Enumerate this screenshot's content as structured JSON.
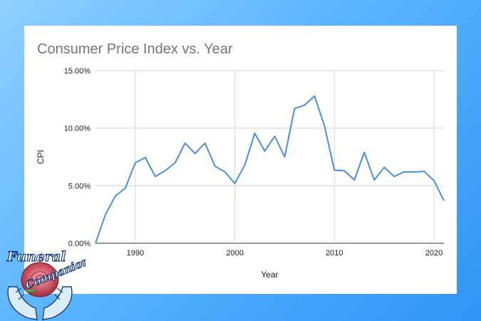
{
  "logo": {
    "line1": "Funeral",
    "line2": "Companion"
  },
  "chart_data": {
    "type": "line",
    "title": "Consumer Price Index vs. Year",
    "xlabel": "Year",
    "ylabel": "CPI",
    "xlim": [
      1986,
      2021
    ],
    "ylim": [
      0,
      15
    ],
    "x_ticks": [
      1990,
      2000,
      2010,
      2020
    ],
    "y_ticks": [
      0,
      5,
      10,
      15
    ],
    "y_tick_labels": [
      "0.00%",
      "5.00%",
      "10.00%",
      "15.00%"
    ],
    "grid": true,
    "line_color": "#4a8fdc",
    "series": [
      {
        "x": [
          1986,
          1987,
          1988,
          1989,
          1990,
          1991,
          1992,
          1993,
          1994,
          1995,
          1996,
          1997,
          1998,
          1999,
          2000,
          2001,
          2002,
          2003,
          2004,
          2005,
          2006,
          2007,
          2008,
          2009,
          2010,
          2011,
          2012,
          2013,
          2014,
          2015,
          2016,
          2017,
          2018,
          2019,
          2020,
          2021
        ],
        "values": [
          0.0,
          2.5,
          4.1,
          4.8,
          7.0,
          7.45,
          5.8,
          6.3,
          7.0,
          8.7,
          7.8,
          8.7,
          6.7,
          6.2,
          5.2,
          6.8,
          9.55,
          8.0,
          9.3,
          7.5,
          11.7,
          12.0,
          12.8,
          10.2,
          6.35,
          6.3,
          5.5,
          7.9,
          5.5,
          6.6,
          5.8,
          6.2,
          6.2,
          6.25,
          5.45,
          3.7
        ]
      }
    ]
  }
}
